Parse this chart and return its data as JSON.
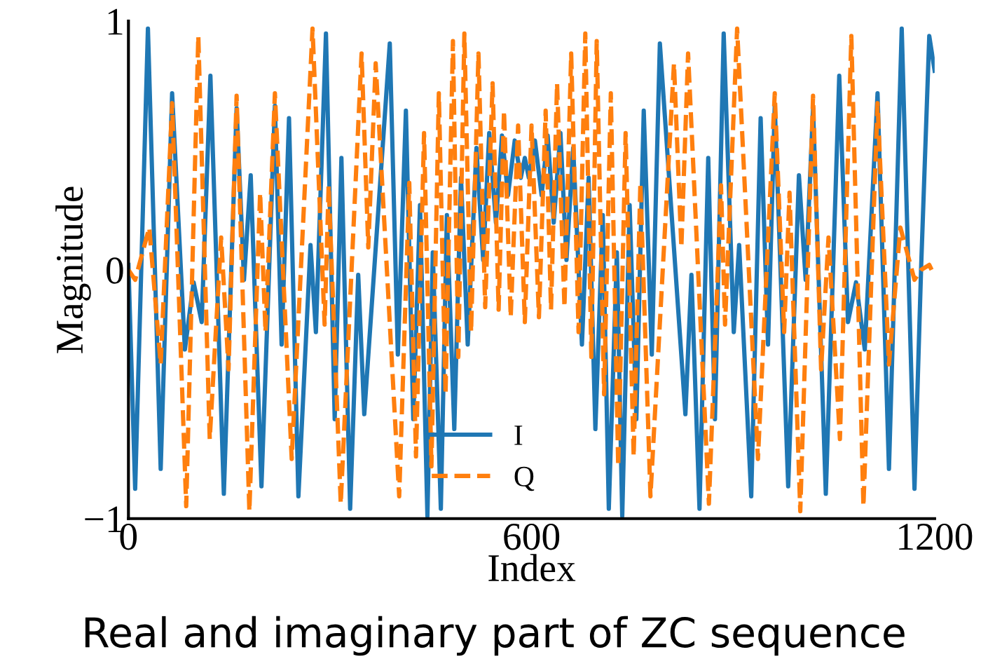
{
  "chart_data": {
    "type": "line",
    "xlabel": "Index",
    "ylabel": "Magnitude",
    "annotations": [
      "Real and imaginary part of ZC sequence"
    ],
    "xlim": [
      0,
      1200
    ],
    "xticks": [
      0,
      600,
      1200
    ],
    "ylim": [
      -1,
      1
    ],
    "yticks": [
      {
        "value": -1,
        "label": "−1"
      },
      0,
      1
    ],
    "grid": false,
    "legend": "bottom",
    "marker": "none",
    "series": [
      {
        "name": "I",
        "color": "#1f77b4",
        "line_style": "solid",
        "x": [
          0,
          10,
          29,
          48,
          65,
          84,
          97,
          109,
          122,
          142,
          161,
          172,
          182,
          198,
          218,
          228,
          239,
          253,
          271,
          279,
          294,
          307,
          317,
          330,
          342,
          351,
          389,
          401,
          413,
          424,
          434,
          445,
          453,
          465,
          474,
          485,
          495,
          505,
          518,
          528,
          537,
          547,
          556,
          565,
          575,
          584,
          590,
          596,
          605,
          615,
          624,
          633,
          643,
          652,
          662,
          675,
          685,
          695,
          706,
          715,
          727,
          735,
          746,
          756,
          767,
          779,
          791,
          829,
          838,
          850,
          863,
          873,
          886,
          901,
          909,
          927,
          941,
          952,
          962,
          982,
          998,
          1008,
          1019,
          1038,
          1058,
          1071,
          1083,
          1096,
          1115,
          1132,
          1151,
          1170,
          1180,
          1192,
          1200
        ],
        "values": [
          0.02,
          -0.88,
          0.97,
          -0.8,
          0.71,
          -0.32,
          -0.05,
          -0.21,
          0.78,
          -0.9,
          0.65,
          -0.04,
          0.38,
          -0.87,
          0.66,
          -0.3,
          0.61,
          -0.91,
          0.1,
          -0.25,
          0.95,
          -0.6,
          0.45,
          -0.96,
          -0.02,
          -0.58,
          0.91,
          -0.34,
          0.64,
          -0.6,
          0.26,
          -0.99,
          0.07,
          -0.96,
          0.22,
          -0.64,
          0.37,
          -0.3,
          0.49,
          0.04,
          0.55,
          0.19,
          0.54,
          0.3,
          0.52,
          0.37,
          0.45,
          0.37,
          0.52,
          0.3,
          0.54,
          0.19,
          0.55,
          0.04,
          0.49,
          -0.3,
          0.37,
          -0.64,
          0.22,
          -0.96,
          0.07,
          -0.99,
          0.26,
          -0.6,
          0.64,
          -0.34,
          0.91,
          -0.58,
          -0.02,
          -0.96,
          0.45,
          -0.6,
          0.95,
          -0.25,
          0.1,
          -0.91,
          0.61,
          -0.3,
          0.66,
          -0.87,
          0.38,
          -0.04,
          0.65,
          -0.9,
          0.78,
          -0.21,
          -0.05,
          -0.32,
          0.71,
          -0.8,
          0.97,
          -0.88,
          0.02,
          0.94,
          0.8
        ]
      },
      {
        "name": "Q",
        "color": "#ff7f0e",
        "line_style": "dashed",
        "x": [
          0,
          10,
          31,
          48,
          65,
          86,
          104,
          121,
          138,
          149,
          161,
          180,
          196,
          204,
          218,
          243,
          274,
          292,
          298,
          316,
          347,
          357,
          368,
          403,
          418,
          428,
          440,
          451,
          462,
          472,
          483,
          491,
          500,
          510,
          521,
          531,
          542,
          551,
          559,
          569,
          580,
          590,
          600,
          611,
          621,
          629,
          638,
          649,
          659,
          670,
          680,
          689,
          697,
          708,
          718,
          729,
          740,
          752,
          762,
          777,
          812,
          823,
          833,
          864,
          882,
          888,
          906,
          937,
          962,
          976,
          984,
          1000,
          1019,
          1031,
          1042,
          1059,
          1076,
          1094,
          1115,
          1132,
          1149,
          1170,
          1180,
          1192,
          1199
        ],
        "values": [
          0.0,
          -0.04,
          0.17,
          -0.38,
          0.67,
          -0.95,
          0.94,
          -0.68,
          0.13,
          -0.4,
          0.7,
          -0.97,
          0.31,
          -0.25,
          0.71,
          -0.76,
          0.97,
          -0.22,
          0.34,
          -0.94,
          0.87,
          0.09,
          0.83,
          -0.91,
          0.35,
          -0.75,
          0.55,
          -0.79,
          0.71,
          -0.5,
          0.92,
          -0.35,
          0.95,
          -0.25,
          0.87,
          -0.15,
          0.75,
          -0.16,
          0.64,
          -0.19,
          0.58,
          -0.21,
          0.58,
          -0.19,
          0.64,
          -0.16,
          0.75,
          -0.15,
          0.87,
          -0.25,
          0.95,
          -0.35,
          0.92,
          -0.5,
          0.71,
          -0.79,
          0.55,
          -0.75,
          0.35,
          -0.91,
          0.83,
          0.09,
          0.87,
          -0.94,
          0.34,
          -0.22,
          0.97,
          -0.76,
          0.71,
          -0.25,
          0.31,
          -0.97,
          0.7,
          -0.4,
          0.13,
          -0.68,
          0.94,
          -0.95,
          0.67,
          -0.38,
          0.17,
          -0.04,
          0.0,
          0.02,
          -0.02
        ]
      }
    ]
  }
}
